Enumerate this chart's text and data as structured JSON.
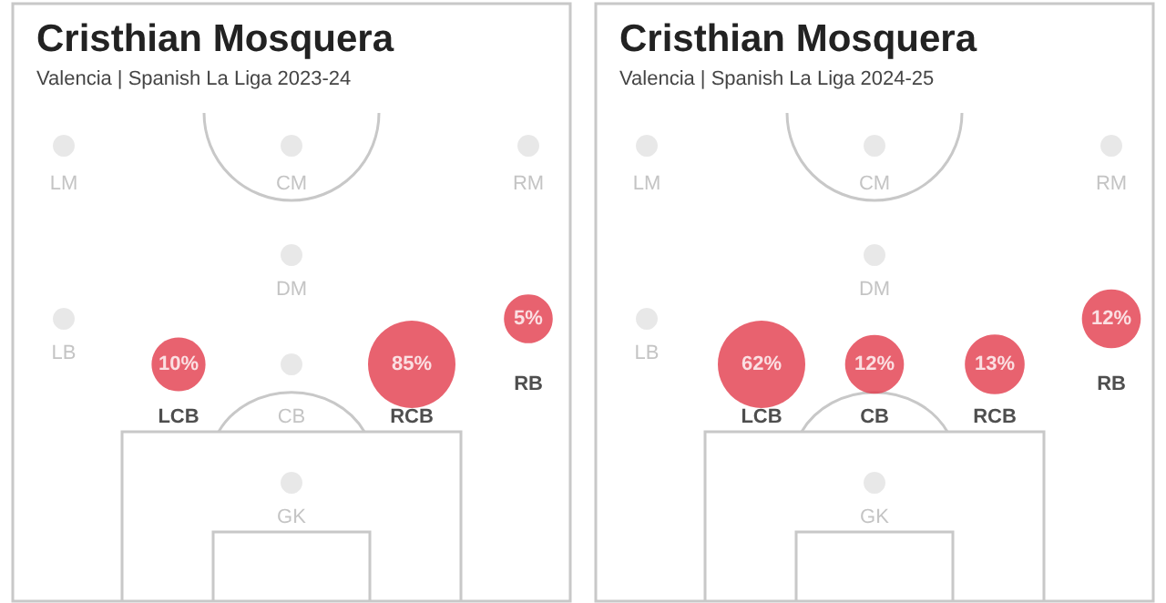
{
  "chart_data": [
    {
      "type": "other",
      "title": "Cristhian Mosquera",
      "subtitle": "Valencia | Spanish La Liga 2023-24",
      "categories": [
        "LM",
        "CM",
        "RM",
        "DM",
        "LB",
        "LCB",
        "CB",
        "RCB",
        "RB",
        "GK"
      ],
      "values": [
        null,
        null,
        null,
        null,
        null,
        10,
        null,
        85,
        5,
        null
      ],
      "value_labels": [
        null,
        null,
        null,
        null,
        null,
        "10%",
        null,
        "85%",
        "5%",
        null
      ],
      "color": "#e23b4b"
    },
    {
      "type": "other",
      "title": "Cristhian Mosquera",
      "subtitle": "Valencia | Spanish La Liga 2024-25",
      "categories": [
        "LM",
        "CM",
        "RM",
        "DM",
        "LB",
        "LCB",
        "CB",
        "RCB",
        "RB",
        "GK"
      ],
      "values": [
        null,
        null,
        null,
        null,
        null,
        62,
        12,
        13,
        12,
        null
      ],
      "value_labels": [
        null,
        null,
        null,
        null,
        null,
        "62%",
        "12%",
        "13%",
        "12%",
        null
      ],
      "color": "#e23b4b"
    }
  ]
}
